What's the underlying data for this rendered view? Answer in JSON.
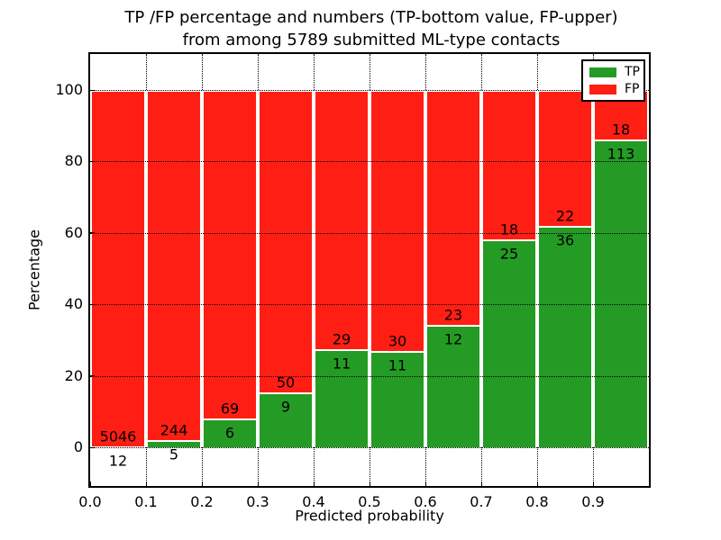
{
  "title": {
    "line1": "TP /FP percentage and numbers (TP-bottom value, FP-upper)",
    "line2": "from among 5789 submitted ML-type contacts"
  },
  "chart_data": {
    "type": "bar",
    "subtype": "stacked-percentage-histogram",
    "title": "TP /FP percentage and numbers (TP-bottom value, FP-upper) from among 5789 submitted ML-type contacts",
    "xlabel": "Predicted probability",
    "ylabel": "Percentage",
    "xlim": [
      0.0,
      1.0
    ],
    "ylim": [
      -11,
      110
    ],
    "grid": "dotted",
    "legend_position": "upper right",
    "x_tick_labels": [
      "0.0",
      "0.1",
      "0.2",
      "0.3",
      "0.4",
      "0.5",
      "0.6",
      "0.7",
      "0.8",
      "0.9"
    ],
    "y_tick_values": [
      0,
      20,
      40,
      60,
      80,
      100
    ],
    "bin_width": 0.1,
    "total_contacts": 5789,
    "series": [
      {
        "name": "TP",
        "color": "#249b24",
        "counts": [
          12,
          5,
          6,
          9,
          11,
          11,
          12,
          25,
          36,
          113
        ]
      },
      {
        "name": "FP",
        "color": "#ff1e14",
        "counts": [
          5046,
          244,
          69,
          50,
          29,
          30,
          23,
          18,
          22,
          18
        ]
      }
    ],
    "bins": [
      {
        "x_start": 0.0,
        "tp_count": 12,
        "fp_count": 5046,
        "tp_pct": 0.24,
        "fp_pct": 99.76
      },
      {
        "x_start": 0.1,
        "tp_count": 5,
        "fp_count": 244,
        "tp_pct": 2.01,
        "fp_pct": 97.99
      },
      {
        "x_start": 0.2,
        "tp_count": 6,
        "fp_count": 69,
        "tp_pct": 8.0,
        "fp_pct": 92.0
      },
      {
        "x_start": 0.3,
        "tp_count": 9,
        "fp_count": 50,
        "tp_pct": 15.25,
        "fp_pct": 84.75
      },
      {
        "x_start": 0.4,
        "tp_count": 11,
        "fp_count": 29,
        "tp_pct": 27.5,
        "fp_pct": 72.5
      },
      {
        "x_start": 0.5,
        "tp_count": 11,
        "fp_count": 30,
        "tp_pct": 26.83,
        "fp_pct": 73.17
      },
      {
        "x_start": 0.6,
        "tp_count": 12,
        "fp_count": 23,
        "tp_pct": 34.29,
        "fp_pct": 65.71
      },
      {
        "x_start": 0.7,
        "tp_count": 25,
        "fp_count": 18,
        "tp_pct": 58.14,
        "fp_pct": 41.86
      },
      {
        "x_start": 0.8,
        "tp_count": 36,
        "fp_count": 22,
        "tp_pct": 62.07,
        "fp_pct": 37.93
      },
      {
        "x_start": 0.9,
        "tp_count": 113,
        "fp_count": 18,
        "tp_pct": 86.26,
        "fp_pct": 13.74
      }
    ],
    "legend": {
      "entries": [
        {
          "label": "TP",
          "color": "#249b24"
        },
        {
          "label": "FP",
          "color": "#ff1e14"
        }
      ]
    }
  },
  "colors": {
    "tp_green": "#249b24",
    "fp_red": "#ff1e14",
    "axis": "#000000",
    "background": "#ffffff"
  }
}
